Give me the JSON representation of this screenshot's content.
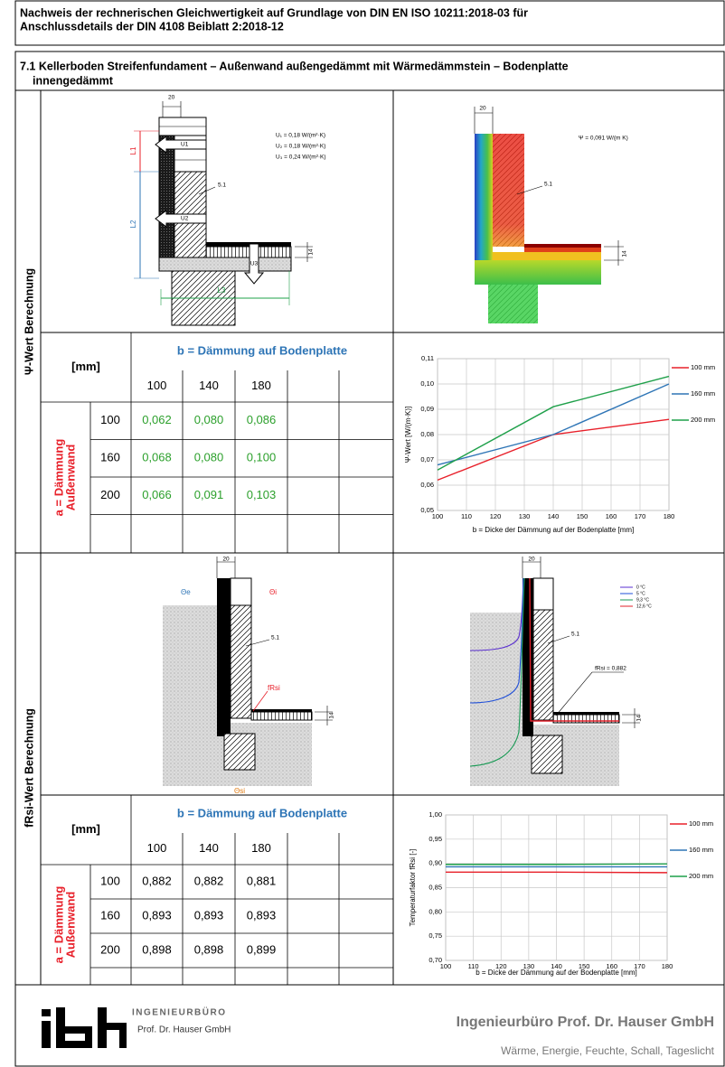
{
  "header": {
    "title": [
      "Nachweis der rechnerischen Gleichwertigkeit auf Grundlage von DIN EN ISO 10211:2018-03 für",
      "Anschlussdetails der DIN 4108 Beiblatt 2:2018-12"
    ]
  },
  "section": {
    "title": [
      "7.1 Kellerboden Streifenfundament – Außenwand außengedämmt mit Wärmedämmstein – Bodenplatte",
      "innengedämmt"
    ]
  },
  "psi": {
    "label": "Ψ-Wert Berechnung",
    "detail": {
      "width": "20",
      "l1": "L1",
      "l2": "L2",
      "l3": "L3",
      "u1": "U1",
      "u2": "U2",
      "u3": "U3",
      "u_values": [
        "U₁ = 0,18 W/(m²·K)",
        "U₂ = 0,18 W/(m²·K)",
        "U₃ = 0,24 W/(m²·K)"
      ],
      "material": "5.1",
      "height": "14"
    },
    "result": {
      "width": "20",
      "psi": "Ψ = 0,091 W/(m K)",
      "material": "5.1",
      "height": "14"
    },
    "table": {
      "corner": "[mm]",
      "column_header": "b = Dämmung auf Bodenplatte",
      "columns": [
        "100",
        "140",
        "180"
      ],
      "row_header": [
        "a = Dämmung",
        "Außenwand"
      ],
      "color": "#2ca02c",
      "rows": [
        {
          "label": "100",
          "cells": [
            "0,062",
            "0,080",
            "0,086"
          ]
        },
        {
          "label": "160",
          "cells": [
            "0,068",
            "0,080",
            "0,100"
          ]
        },
        {
          "label": "200",
          "cells": [
            "0,066",
            "0,091",
            "0,103"
          ]
        }
      ]
    }
  },
  "frsi": {
    "label": "fRsi-Wert Berechnung",
    "detail": {
      "width": "20",
      "theta_e": "Θe",
      "theta_i": "Θi",
      "material": "5.1",
      "f_rsi": "fRsi",
      "height": "14",
      "theta_si": "Θsi"
    },
    "result": {
      "width": "20",
      "material": "5.1",
      "height": "14",
      "marker": "fRsi = 0,882",
      "isotherms": [
        {
          "label": "0 °C",
          "color": "#5a2fd0"
        },
        {
          "label": "5 °C",
          "color": "#1f4fd8"
        },
        {
          "label": "9,3 °C",
          "color": "#1a9a55"
        },
        {
          "label": "12,6 °C",
          "color": "#e0202a"
        }
      ]
    },
    "table": {
      "corner": "[mm]",
      "column_header": "b = Dämmung auf Bodenplatte",
      "columns": [
        "100",
        "140",
        "180"
      ],
      "row_header": [
        "a = Dämmung",
        "Außenwand"
      ],
      "color": "#000000",
      "rows": [
        {
          "label": "100",
          "cells": [
            "0,882",
            "0,882",
            "0,881"
          ]
        },
        {
          "label": "160",
          "cells": [
            "0,893",
            "0,893",
            "0,893"
          ]
        },
        {
          "label": "200",
          "cells": [
            "0,898",
            "0,898",
            "0,899"
          ]
        }
      ]
    }
  },
  "footer": {
    "company_tag": "INGENIEURBÜRO",
    "company_sub": "Prof. Dr. Hauser GmbH",
    "company": "Ingenieurbüro Prof. Dr. Hauser GmbH",
    "tagline": "Wärme, Energie, Feuchte, Schall, Tageslicht"
  },
  "chart_data": [
    {
      "type": "line",
      "x": [
        100,
        140,
        180
      ],
      "xlim": [
        100,
        180
      ],
      "xticks": [
        100,
        110,
        120,
        130,
        140,
        150,
        160,
        170,
        180
      ],
      "ylim": [
        0.05,
        0.11
      ],
      "yticks": [
        {
          "value": 0.05,
          "label": "0,05"
        },
        {
          "value": 0.06,
          "label": "0,06"
        },
        {
          "value": 0.07,
          "label": "0,07"
        },
        {
          "value": 0.08,
          "label": "0,08"
        },
        {
          "value": 0.09,
          "label": "0,09"
        },
        {
          "value": 0.1,
          "label": "0,10"
        },
        {
          "value": 0.11,
          "label": "0,11"
        }
      ],
      "x_label": "b = Dicke der Dämmung auf der Bodenplatte [mm]",
      "y_label": "Ψ-Wert [W/(m·K)]",
      "grid": true,
      "legend": "right",
      "series": [
        {
          "name": "100 mm",
          "color": "#e8202a",
          "values": [
            0.062,
            0.08,
            0.086
          ]
        },
        {
          "name": "160 mm",
          "color": "#2e75b6",
          "values": [
            0.068,
            0.08,
            0.1
          ]
        },
        {
          "name": "200 mm",
          "color": "#1fa04a",
          "values": [
            0.066,
            0.091,
            0.103
          ]
        }
      ]
    },
    {
      "type": "line",
      "x": [
        100,
        140,
        180
      ],
      "xlim": [
        100,
        180
      ],
      "xticks": [
        100,
        110,
        120,
        130,
        140,
        150,
        160,
        170,
        180
      ],
      "ylim": [
        0.7,
        1.0
      ],
      "yticks": [
        {
          "value": 0.7,
          "label": "0,70"
        },
        {
          "value": 0.75,
          "label": "0,75"
        },
        {
          "value": 0.8,
          "label": "0,80"
        },
        {
          "value": 0.85,
          "label": "0,85"
        },
        {
          "value": 0.9,
          "label": "0,90"
        },
        {
          "value": 0.95,
          "label": "0,95"
        },
        {
          "value": 1.0,
          "label": "1,00"
        }
      ],
      "x_label": "b = Dicke der Dämmung auf der Bodenplatte [mm]",
      "y_label": "Temperaturfaktor fRsi [-]",
      "grid": true,
      "legend": "right",
      "series": [
        {
          "name": "100 mm",
          "color": "#e8202a",
          "values": [
            0.882,
            0.882,
            0.881
          ]
        },
        {
          "name": "160 mm",
          "color": "#2e75b6",
          "values": [
            0.893,
            0.893,
            0.893
          ]
        },
        {
          "name": "200 mm",
          "color": "#1fa04a",
          "values": [
            0.898,
            0.898,
            0.899
          ]
        }
      ]
    }
  ]
}
